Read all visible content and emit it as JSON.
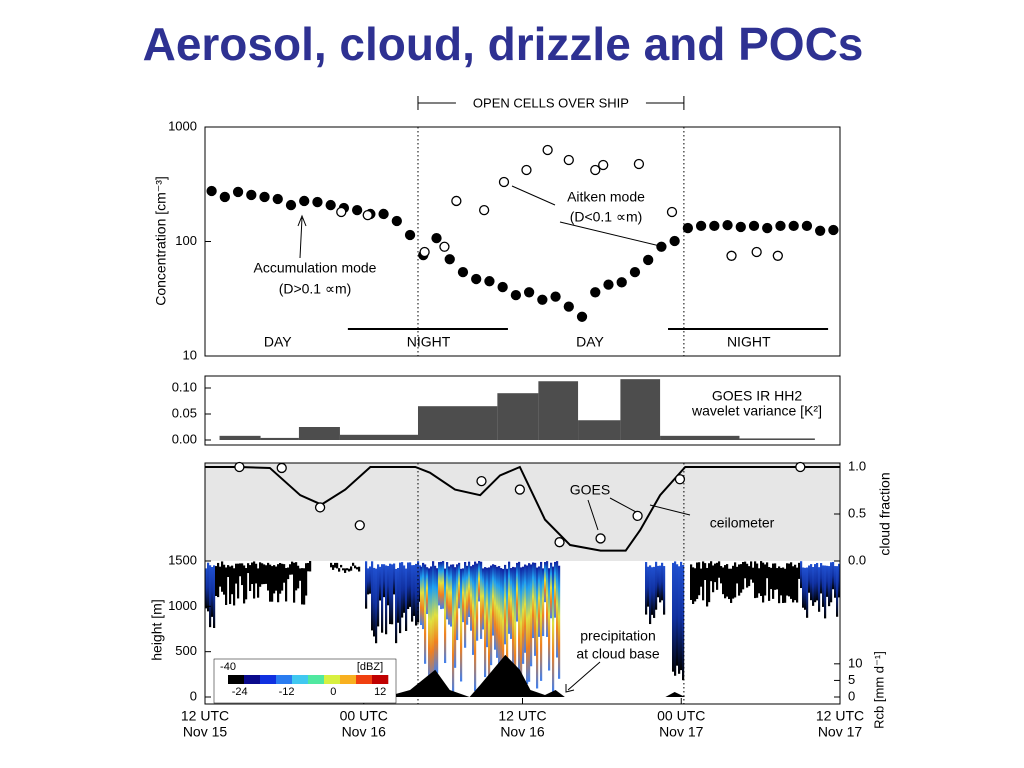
{
  "title": "Aerosol, cloud, drizzle and POCs",
  "chart_data": [
    {
      "type": "scatter",
      "ylabel": "Concentration [cm⁻³]",
      "log_y": true,
      "xlim": [
        0,
        48
      ],
      "ylim": [
        10,
        1000
      ],
      "yticks": [
        10,
        100,
        1000
      ],
      "span_label": "OPEN CELLS OVER SHIP",
      "vlines": [
        16.1,
        36.2
      ],
      "periods": [
        {
          "label": "DAY",
          "x": 5.5
        },
        {
          "label": "NIGHT",
          "x": 16.9,
          "bar": [
            10.8,
            22.9
          ]
        },
        {
          "label": "DAY",
          "x": 29.1
        },
        {
          "label": "NIGHT",
          "x": 41.1,
          "bar": [
            35.0,
            47.1
          ]
        }
      ],
      "series": [
        {
          "name": "Accumulation mode",
          "size": "(D>0.1 ∝m)",
          "marker": "filled",
          "color": "#000000",
          "x": [
            0.5,
            1.5,
            2.5,
            3.5,
            4.5,
            5.5,
            6.5,
            7.5,
            8.5,
            9.5,
            10.5,
            11.5,
            12.5,
            13.5,
            14.5,
            15.5,
            16.5,
            17.5,
            18.5,
            19.5,
            20.5,
            21.5,
            22.5,
            23.5,
            24.5,
            25.5,
            26.5,
            27.5,
            28.5,
            29.5,
            30.5,
            31.5,
            32.5,
            33.5,
            34.5,
            35.5,
            36.5,
            37.5,
            38.5,
            39.5,
            40.5,
            41.5,
            42.5,
            43.5,
            44.5,
            45.5,
            46.5,
            47.5
          ],
          "values": [
            276,
            245,
            271,
            255,
            245,
            235,
            208,
            226,
            221,
            208,
            196,
            188,
            174,
            174,
            151,
            114,
            76,
            107,
            70,
            54,
            47,
            45,
            40,
            34,
            36,
            31,
            33,
            27,
            22,
            36,
            42,
            44,
            54,
            69,
            90,
            101,
            131,
            137,
            137,
            139,
            134,
            137,
            131,
            137,
            137,
            137,
            124,
            126
          ]
        },
        {
          "name": "Aitken mode",
          "size": "(D<0.1 ∝m)",
          "marker": "open",
          "color": "#000000",
          "x": [
            10.3,
            12.3,
            16.6,
            18.1,
            19.0,
            21.1,
            22.6,
            24.3,
            25.9,
            27.5,
            29.5,
            30.1,
            32.8,
            35.3,
            39.8,
            41.7,
            43.3
          ],
          "values": [
            181,
            170,
            81,
            90,
            226,
            188,
            331,
            421,
            630,
            515,
            421,
            466,
            475,
            181,
            75,
            81,
            75
          ]
        }
      ]
    },
    {
      "type": "histogram",
      "label": [
        "GOES IR HH2",
        "wavelet variance [K²]"
      ],
      "xlim": [
        0,
        48
      ],
      "ylim": [
        0,
        0.12
      ],
      "yticks": [
        {
          "value": 0,
          "label": "0.00"
        },
        {
          "value": 0.05,
          "label": "0.05"
        },
        {
          "value": 0.1,
          "label": "0.10"
        }
      ],
      "color": "#4d4d4d",
      "bins": [
        1.1,
        4.2,
        7.1,
        10.2,
        16.1,
        22.1,
        25.2,
        28.2,
        31.4,
        34.4,
        40.4,
        46.1
      ],
      "values": [
        0.008,
        0.004,
        0.025,
        0.01,
        0.065,
        0.09,
        0.113,
        0.038,
        0.117,
        0.008,
        0.003
      ]
    },
    {
      "type": "line",
      "y2label": "cloud fraction",
      "xlim": [
        0,
        48
      ],
      "y2lim": [
        0,
        1
      ],
      "y2ticks": [
        {
          "value": 0,
          "label": "0.0"
        },
        {
          "value": 0.5,
          "label": "0.5"
        },
        {
          "value": 1,
          "label": "1.0"
        }
      ],
      "series": [
        {
          "name": "ceilometer",
          "axis": "y2",
          "marker": "line",
          "color": "#000000",
          "x": [
            0,
            2.6,
            4.9,
            7.2,
            8.8,
            10.6,
            12.5,
            15.9,
            17.0,
            18.9,
            20.8,
            22.3,
            23.8,
            25.7,
            27.6,
            29.9,
            31.8,
            32.9,
            34.4,
            36.3,
            48
          ],
          "values": [
            1.0,
            1.0,
            0.99,
            0.7,
            0.6,
            0.76,
            1.0,
            1.0,
            0.94,
            0.76,
            0.7,
            0.91,
            1.0,
            0.44,
            0.17,
            0.11,
            0.11,
            0.33,
            0.7,
            1.0,
            1.0
          ]
        },
        {
          "name": "GOES",
          "axis": "y2",
          "marker": "open",
          "color": "#000000",
          "x": [
            2.6,
            5.8,
            8.7,
            11.7,
            20.9,
            23.8,
            26.8,
            29.9,
            32.7,
            35.9,
            45.0
          ],
          "values": [
            1.0,
            0.99,
            0.57,
            0.38,
            0.85,
            0.76,
            0.2,
            0.24,
            0.48,
            0.87,
            1.0
          ]
        }
      ]
    },
    {
      "type": "area",
      "ylabel": "height [m]",
      "xlim": [
        0,
        48
      ],
      "ylim": [
        0,
        1500
      ],
      "yticks": [
        0,
        500,
        1000,
        1500
      ],
      "y2label": "Rcb [mm d⁻¹]",
      "y2lim": [
        0,
        41
      ],
      "y2ticks": [
        0,
        5,
        10
      ],
      "xticks": [
        {
          "value": 0,
          "label": "12 UTC",
          "date": "Nov 15"
        },
        {
          "value": 12,
          "label": "00 UTC",
          "date": "Nov 16"
        },
        {
          "value": 24,
          "label": "12 UTC",
          "date": "Nov 16"
        },
        {
          "value": 36,
          "label": "00 UTC",
          "date": "Nov 17"
        },
        {
          "value": 48,
          "label": "12 UTC",
          "date": "Nov 17"
        }
      ],
      "series": [
        {
          "name": "precipitation",
          "name2": "at cloud base",
          "axis": "y2",
          "color": "#000000",
          "x": [
            13.6,
            15.5,
            17.4,
            18.5,
            20.0,
            20.8,
            22.7,
            23.8,
            24.6,
            25.7,
            26.5,
            27.2,
            null,
            34.8,
            35.5,
            36.3
          ],
          "values": [
            0,
            2.1,
            8.2,
            2.1,
            0,
            3.6,
            12.7,
            8.2,
            2.1,
            0.6,
            2.1,
            0,
            null,
            0,
            1.5,
            0
          ]
        }
      ],
      "colorbar": {
        "label": "[dBZ]",
        "under": -40,
        "clim": [
          -27,
          14
        ],
        "ticks": [
          -24,
          -12,
          0,
          12
        ],
        "colors": [
          "#000000",
          "#0a0a8c",
          "#1030e0",
          "#2a7cf0",
          "#40c8f0",
          "#50e8a0",
          "#d8f040",
          "#f8b020",
          "#f04010",
          "#c00000"
        ]
      }
    }
  ]
}
